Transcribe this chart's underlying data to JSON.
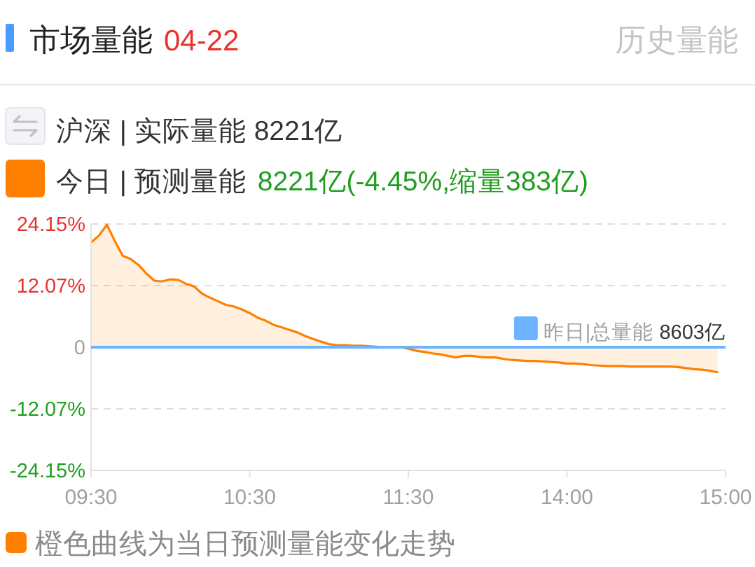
{
  "chart_data": {
    "type": "area",
    "title": "市场量能",
    "subtitle": "04-22",
    "annotations": [
      "历史量能",
      "沪深 | 实际量能 8221亿",
      "8221亿(-4.45%,缩量383亿)",
      "橙色曲线为当日预测量能变化走势"
    ],
    "categories": [
      "09:30",
      null,
      null,
      null,
      null,
      null,
      null,
      null,
      null,
      null,
      null,
      null,
      null,
      null,
      null,
      null,
      null,
      null,
      null,
      null,
      "10:30",
      null,
      null,
      null,
      null,
      null,
      null,
      null,
      null,
      null,
      null,
      null,
      null,
      null,
      null,
      null,
      null,
      null,
      null,
      null,
      "11:30",
      null,
      null,
      null,
      null,
      null,
      null,
      null,
      null,
      null,
      null,
      null,
      null,
      null,
      null,
      null,
      null,
      null,
      null,
      null,
      "14:00",
      null,
      null,
      null,
      null,
      null,
      null,
      null,
      null,
      null,
      null,
      null,
      null,
      null,
      null,
      null,
      null,
      null,
      null,
      null,
      "15:00"
    ],
    "series": [
      {
        "name": "今日 | 预测量能",
        "color": "#ff8000",
        "values": [
          20.5,
          21.9,
          24.0,
          20.8,
          17.9,
          17.3,
          16.1,
          14.4,
          13.0,
          12.9,
          13.3,
          13.2,
          12.4,
          11.9,
          10.5,
          9.7,
          9.0,
          8.3,
          8.0,
          7.4,
          6.7,
          5.8,
          5.2,
          4.4,
          3.9,
          3.4,
          2.9,
          2.2,
          1.6,
          1.1,
          0.6,
          0.4,
          0.4,
          0.3,
          0.3,
          0.2,
          0.1,
          0,
          0,
          0,
          -0.3,
          -0.7,
          -0.9,
          -1.2,
          -1.4,
          -1.7,
          -2.0,
          -1.7,
          -1.7,
          -1.9,
          -2.0,
          -2.0,
          -2.3,
          -2.5,
          -2.6,
          -2.7,
          -2.7,
          -2.8,
          -2.9,
          -3.0,
          -3.2,
          -3.2,
          -3.3,
          -3.5,
          -3.6,
          -3.7,
          -3.7,
          -3.7,
          -3.8,
          -3.8,
          -3.8,
          -3.8,
          -3.8,
          -3.8,
          -3.9,
          -4.1,
          -4.3,
          -4.4,
          -4.6,
          -4.9,
          null
        ]
      }
    ],
    "ylim": [
      -24.15,
      24.15
    ],
    "yticks": [
      {
        "value": 24.15,
        "label": "24.15%"
      },
      {
        "value": 12.07,
        "label": "12.07%"
      },
      0,
      {
        "value": -12.07,
        "label": "-12.07%"
      },
      {
        "value": -24.15,
        "label": "-24.15%"
      }
    ],
    "grid": "y",
    "legend": "top left",
    "ref_lines": [
      {
        "axis": "y",
        "value": 0,
        "label": "昨日|总量能 8603亿",
        "color": "#6cb4ff"
      }
    ]
  }
}
